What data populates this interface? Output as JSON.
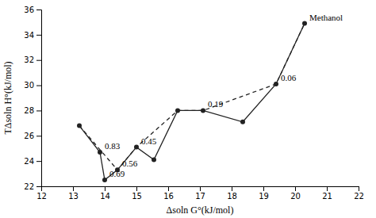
{
  "chart_data": {
    "type": "line",
    "x_label": "Δsoln G°(kJ/mol)",
    "y_label": "TΔsoln H°(kJ/mol)",
    "series": [
      {
        "x": [
          13.2,
          14.4,
          15.0,
          16.3,
          17.1,
          19.4,
          20.3
        ],
        "values": [
          26.8,
          23.3,
          25.1,
          28.0,
          28.0,
          30.1,
          34.9
        ],
        "color": "#222222",
        "line_style": "dashed",
        "marker": "none"
      },
      {
        "x": [
          13.2,
          13.85,
          14.0,
          14.4,
          15.0,
          15.55,
          16.3,
          17.1,
          18.35,
          19.4,
          20.3
        ],
        "values": [
          26.8,
          24.7,
          22.5,
          23.3,
          25.1,
          24.1,
          28.0,
          28.0,
          27.1,
          30.1,
          34.9
        ],
        "color": "#222222",
        "line_style": "solid",
        "marker": "circle"
      }
    ],
    "annotations": [
      {
        "x": 13.85,
        "y": 24.7,
        "text": "0.83"
      },
      {
        "x": 14.0,
        "y": 22.5,
        "text": "0.69"
      },
      {
        "x": 14.4,
        "y": 23.3,
        "text": "0.56"
      },
      {
        "x": 15.0,
        "y": 25.1,
        "text": "0.45"
      },
      {
        "x": 17.1,
        "y": 28.0,
        "text": "0.19"
      },
      {
        "x": 19.4,
        "y": 30.1,
        "text": "0.06"
      },
      {
        "x": 20.3,
        "y": 34.9,
        "text": "Methanol"
      }
    ],
    "xlim": [
      12,
      22
    ],
    "ylim": [
      22,
      36
    ],
    "xticks": [
      12,
      13,
      14,
      15,
      16,
      17,
      18,
      19,
      20,
      21,
      22
    ],
    "yticks": [
      22,
      24,
      26,
      28,
      30,
      32,
      34,
      36
    ],
    "grid": false
  }
}
